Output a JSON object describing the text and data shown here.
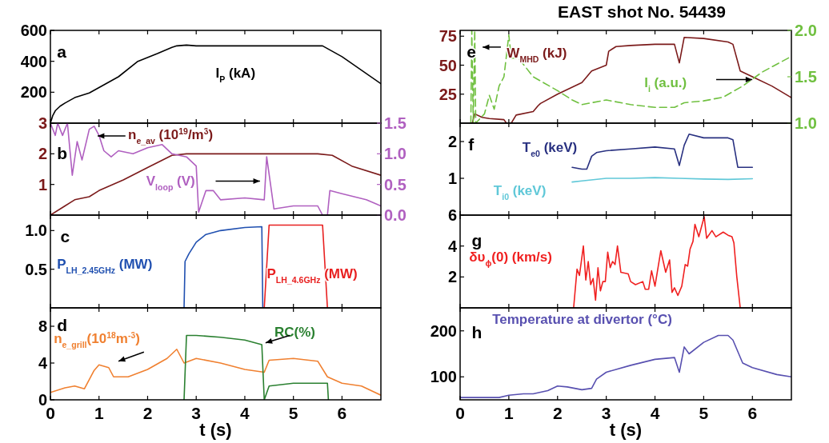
{
  "chart_data": [
    {
      "type": "line",
      "annotations": [
        "a"
      ],
      "xlim": [
        0,
        6.8
      ],
      "xticks": [
        0,
        1,
        2,
        3,
        4,
        5,
        6
      ],
      "ylim": [
        0,
        600
      ],
      "yticks": [
        200,
        400,
        600
      ],
      "tick_labels": "y",
      "legend": false,
      "series": [
        {
          "name": "I$_{P}$ (kA)",
          "color": "#000000",
          "x": [
            0,
            0.05,
            0.1,
            0.2,
            0.3,
            0.5,
            0.8,
            1.0,
            1.4,
            1.8,
            2.2,
            2.5,
            2.6,
            2.8,
            3.0,
            4.0,
            5.0,
            5.6,
            6.0,
            6.8
          ],
          "values": [
            0,
            50,
            80,
            110,
            130,
            165,
            195,
            230,
            300,
            400,
            450,
            490,
            500,
            505,
            500,
            500,
            500,
            500,
            430,
            255
          ]
        }
      ]
    },
    {
      "type": "line",
      "annotations": [
        "b"
      ],
      "xlim": [
        0,
        6.8
      ],
      "xticks": [
        0,
        1,
        2,
        3,
        4,
        5,
        6
      ],
      "ylim": [
        0,
        3
      ],
      "yticks": [
        1,
        2,
        3
      ],
      "y2lim": [
        0,
        1.5
      ],
      "y2ticks": [
        {
          "value": 0,
          "label": "0.0"
        },
        {
          "value": 0.5,
          "label": "0.5"
        },
        {
          "value": 1,
          "label": "1.0"
        },
        {
          "value": 1.5,
          "label": "1.5"
        }
      ],
      "tick_labels": "y",
      "legend": false,
      "series": [
        {
          "name": "n$_{e_av}$ (10$^{19}$/m$^{3}$)",
          "color": "#7b1a1a",
          "x": [
            0,
            0.3,
            0.5,
            0.8,
            1.0,
            1.5,
            2.0,
            2.5,
            2.8,
            3.5,
            4.5,
            5.5,
            5.8,
            6.2,
            6.8
          ],
          "values": [
            0,
            0.3,
            0.5,
            0.6,
            0.8,
            1.15,
            1.55,
            1.95,
            2.0,
            2.0,
            2.0,
            2.0,
            1.95,
            1.6,
            1.3
          ]
        },
        {
          "name": "V$_{loop}$ (V)",
          "color": "#b060c0",
          "axis": "y2",
          "x": [
            0,
            0.1,
            0.15,
            0.25,
            0.35,
            0.45,
            0.55,
            0.65,
            0.8,
            0.9,
            1.0,
            1.1,
            1.25,
            1.4,
            1.7,
            2.0,
            2.3,
            2.5,
            2.8,
            3.0,
            3.05,
            3.2,
            3.35,
            3.5,
            4.0,
            4.4,
            4.45,
            4.6,
            5.0,
            5.5,
            5.6,
            5.7,
            5.75,
            6.0,
            6.5,
            6.8
          ],
          "values": [
            1.5,
            1.3,
            1.5,
            1.3,
            1.5,
            0.65,
            1.2,
            0.9,
            1.4,
            1.45,
            1.3,
            1.05,
            0.95,
            1.05,
            1.0,
            1.1,
            1.15,
            1.0,
            0.95,
            0.8,
            0.05,
            0.4,
            0.4,
            0.25,
            0.28,
            0.25,
            0.95,
            0.1,
            0.15,
            0.15,
            0,
            0,
            0.4,
            0.35,
            0.25,
            0.15
          ]
        }
      ]
    },
    {
      "type": "line",
      "annotations": [
        "c"
      ],
      "xlim": [
        0,
        6.8
      ],
      "xticks": [
        0,
        1,
        2,
        3,
        4,
        5,
        6
      ],
      "ylim": [
        0,
        1.2
      ],
      "yticks": [
        0.5,
        {
          "value": 1,
          "label": "1.0"
        }
      ],
      "tick_labels": "y",
      "legend": false,
      "series": [
        {
          "name": "P$_{LH_2.45GHz}$ (MW)",
          "color": "#2050b0",
          "x": [
            2.75,
            2.77,
            2.85,
            3.0,
            3.2,
            3.5,
            4.0,
            4.35,
            4.37
          ],
          "values": [
            0,
            0.6,
            0.7,
            0.85,
            0.95,
            1.0,
            1.04,
            1.05,
            0
          ]
        },
        {
          "name": "P$_{LH_4.6GHz}$ (MW)",
          "color": "#e82020",
          "x": [
            4.4,
            4.5,
            5.6,
            5.7
          ],
          "values": [
            0,
            1.07,
            1.07,
            0
          ]
        }
      ]
    },
    {
      "type": "line",
      "annotations": [
        "d"
      ],
      "xlabel": "t (s)",
      "xlim": [
        0,
        6.8
      ],
      "xticks": [
        0,
        1,
        2,
        3,
        4,
        5,
        6
      ],
      "ylim": [
        0,
        10
      ],
      "yticks": [
        0,
        4,
        8
      ],
      "legend": false,
      "series": [
        {
          "name": "n$_{e_grill}$(10$^{18}$m$^{-3}$)",
          "color": "#f08030",
          "x": [
            0,
            0.3,
            0.5,
            0.7,
            0.9,
            1.0,
            1.2,
            1.3,
            1.6,
            2.0,
            2.4,
            2.6,
            2.75,
            3.0,
            3.5,
            4.0,
            4.4,
            4.5,
            5.0,
            5.5,
            5.7,
            6.0,
            6.4,
            6.8
          ],
          "values": [
            0.8,
            1.3,
            1.5,
            1.2,
            3.2,
            3.8,
            3.5,
            2.5,
            2.5,
            3.3,
            4.5,
            5.5,
            4.0,
            4.5,
            4.0,
            3.3,
            3.0,
            4.3,
            4.5,
            4.2,
            2.5,
            1.8,
            1.5,
            0.5
          ]
        },
        {
          "name": "RC(%)",
          "color": "#2a8030",
          "x": [
            2.75,
            2.8,
            3.0,
            3.5,
            4.0,
            4.35,
            4.4,
            4.5,
            5.0,
            5.7,
            5.72
          ],
          "values": [
            0,
            7.0,
            7.0,
            6.8,
            6.5,
            6.0,
            0,
            1.5,
            1.8,
            1.8,
            0
          ]
        }
      ]
    },
    {
      "type": "line",
      "title": "EAST shot No. 54439",
      "annotations": [
        "e"
      ],
      "xlim": [
        0,
        6.8
      ],
      "xticks": [
        0,
        1,
        2,
        3,
        4,
        5,
        6
      ],
      "ylim": [
        0,
        80
      ],
      "yticks": [
        25,
        50,
        75
      ],
      "y2lim": [
        1,
        2
      ],
      "y2ticks": [
        {
          "value": 1,
          "label": "1.0"
        },
        {
          "value": 1.5,
          "label": "1.5"
        },
        {
          "value": 2,
          "label": "2.0"
        }
      ],
      "tick_labels": "y",
      "legend": false,
      "series": [
        {
          "name": "W$_{MHD}$ (kJ)",
          "color": "#7b1a1a",
          "x": [
            0.25,
            0.3,
            0.45,
            0.6,
            0.9,
            0.95,
            1.05,
            1.15,
            1.5,
            1.6,
            1.65,
            2.0,
            2.5,
            2.7,
            3.0,
            3.05,
            3.2,
            3.5,
            4.0,
            4.4,
            4.5,
            4.6,
            5.0,
            5.5,
            5.6,
            5.75,
            6.0,
            6.4,
            6.8
          ],
          "values": [
            0,
            8,
            5,
            4,
            3,
            0,
            0,
            7,
            10,
            15,
            17,
            25,
            35,
            45,
            50,
            62,
            66,
            67,
            68,
            68,
            52,
            74,
            73,
            70,
            68,
            45,
            40,
            32,
            22
          ]
        },
        {
          "name": "l$_{i}$ (a.u.)",
          "color": "#70c040",
          "axis": "y2",
          "line_style": "dashed",
          "x": [
            0.22,
            0.24,
            0.27,
            0.3,
            0.32,
            0.5,
            0.6,
            0.7,
            0.8,
            0.9,
            1.0,
            1.05,
            1.2,
            1.5,
            2.0,
            2.3,
            2.5,
            3.0,
            3.5,
            4.0,
            4.4,
            4.6,
            5.0,
            5.4,
            5.8,
            6.2,
            6.8
          ],
          "values": [
            1.0,
            2.0,
            1.0,
            2.0,
            1.0,
            1.1,
            1.3,
            1.15,
            1.4,
            1.5,
            1.95,
            1.7,
            1.7,
            1.5,
            1.35,
            1.25,
            1.2,
            1.25,
            1.2,
            1.17,
            1.17,
            1.22,
            1.24,
            1.28,
            1.4,
            1.55,
            1.72
          ]
        }
      ]
    },
    {
      "type": "line",
      "annotations": [
        "f"
      ],
      "xlim": [
        0,
        6.8
      ],
      "xticks": [
        0,
        1,
        2,
        3,
        4,
        5,
        6
      ],
      "ylim": [
        0,
        2.5
      ],
      "yticks": [
        1,
        2
      ],
      "tick_labels": "y",
      "legend": false,
      "series": [
        {
          "name": "T$_{e0}$ (keV)",
          "color": "#283080",
          "x": [
            2.3,
            2.5,
            2.6,
            2.7,
            2.8,
            3.0,
            3.5,
            4.0,
            4.4,
            4.5,
            4.6,
            4.7,
            5.0,
            5.5,
            5.6,
            5.7,
            6.0
          ],
          "values": [
            1.3,
            1.25,
            1.25,
            1.6,
            1.7,
            1.75,
            1.8,
            1.85,
            1.8,
            1.35,
            1.9,
            2.2,
            2.1,
            2.1,
            2.05,
            1.3,
            1.3
          ]
        },
        {
          "name": "T$_{i0}$ (keV)",
          "color": "#60c8d8",
          "x": [
            2.3,
            2.5,
            3.0,
            3.5,
            4.0,
            4.5,
            5.0,
            5.5,
            6.0
          ],
          "values": [
            0.9,
            0.93,
            1.0,
            1.0,
            1.02,
            1.0,
            0.98,
            0.97,
            0.99
          ]
        }
      ]
    },
    {
      "type": "line",
      "annotations": [
        "g"
      ],
      "xlim": [
        0,
        6.8
      ],
      "xticks": [
        0,
        1,
        2,
        3,
        4,
        5,
        6
      ],
      "ylim": [
        0,
        6
      ],
      "yticks": [
        2,
        4,
        6
      ],
      "tick_labels": "y",
      "legend": false,
      "series": [
        {
          "name": "δυ$_{ϕ}$(0) (km/s)",
          "color": "#f02020",
          "x": [
            2.33,
            2.4,
            2.45,
            2.53,
            2.58,
            2.63,
            2.68,
            2.73,
            2.78,
            2.83,
            2.88,
            2.93,
            2.98,
            3.03,
            3.08,
            3.13,
            3.18,
            3.23,
            3.3,
            3.45,
            3.5,
            3.6,
            3.75,
            3.8,
            3.87,
            3.93,
            4.0,
            4.12,
            4.22,
            4.3,
            4.35,
            4.4,
            4.47,
            4.55,
            4.62,
            4.67,
            4.72,
            4.78,
            4.82,
            4.9,
            5.01,
            5.06,
            5.17,
            5.25,
            5.4,
            5.5,
            5.58,
            5.62,
            5.68,
            5.75
          ],
          "values": [
            0,
            2.5,
            2.1,
            4.0,
            1.8,
            3.0,
            1.5,
            1.9,
            0.5,
            2.6,
            1.1,
            1.7,
            1.7,
            3.6,
            2.6,
            3.0,
            2.8,
            4.0,
            2.3,
            2.2,
            1.7,
            1.5,
            1.7,
            1.2,
            1.2,
            2.4,
            1.4,
            3.7,
            2.3,
            3.1,
            1.0,
            1.3,
            0.8,
            1.4,
            2.8,
            2.7,
            3.8,
            4.3,
            5.4,
            4.6,
            5.9,
            4.5,
            5.0,
            4.6,
            4.9,
            4.7,
            4.6,
            4.2,
            2.0,
            0
          ]
        }
      ]
    },
    {
      "type": "line",
      "annotations": [
        "h"
      ],
      "xlabel": "t (s)",
      "xlim": [
        0,
        6.8
      ],
      "xticks": [
        0,
        1,
        2,
        3,
        4,
        5,
        6
      ],
      "ylim": [
        50,
        250
      ],
      "yticks": [
        100,
        200
      ],
      "legend": false,
      "series": [
        {
          "name": "Temperature at divertor (°C)",
          "color": "#5850b0",
          "x": [
            0,
            0.8,
            1.0,
            1.3,
            1.5,
            1.8,
            2.0,
            2.2,
            2.5,
            2.7,
            2.8,
            3.0,
            3.5,
            4.0,
            4.4,
            4.5,
            4.6,
            4.7,
            5.0,
            5.3,
            5.5,
            5.6,
            5.8,
            6.0,
            6.5,
            6.8
          ],
          "values": [
            55,
            55,
            60,
            63,
            63,
            70,
            80,
            78,
            72,
            75,
            95,
            110,
            125,
            138,
            142,
            110,
            165,
            150,
            175,
            190,
            190,
            180,
            130,
            120,
            105,
            100
          ]
        }
      ]
    }
  ]
}
